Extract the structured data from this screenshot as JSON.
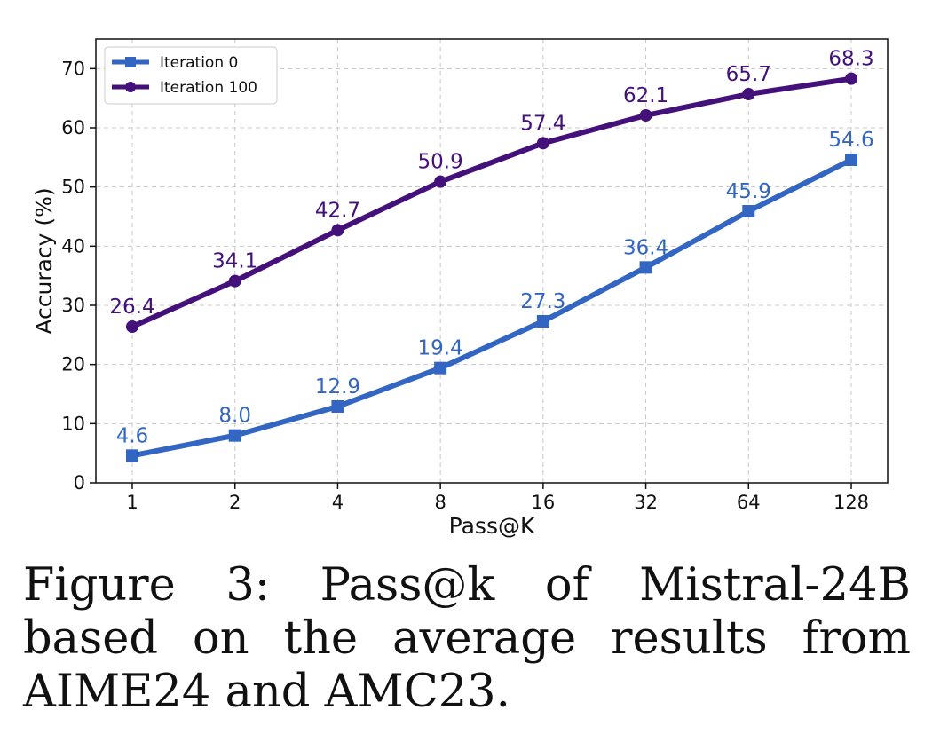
{
  "chart_data": {
    "type": "line",
    "title": "",
    "xlabel": "Pass@K",
    "ylabel": "Accuracy (%)",
    "categories": [
      "1",
      "2",
      "4",
      "8",
      "16",
      "32",
      "64",
      "128"
    ],
    "ylim": [
      0,
      75
    ],
    "yticks": [
      0,
      10,
      20,
      30,
      40,
      50,
      60,
      70
    ],
    "grid": true,
    "legend_position": "top-left",
    "series": [
      {
        "name": "Iteration 0",
        "color": "#3366c2",
        "marker": "square",
        "values": [
          4.6,
          8.0,
          12.9,
          19.4,
          27.3,
          36.4,
          45.9,
          54.6
        ],
        "labels": [
          "4.6",
          "8.0",
          "12.9",
          "19.4",
          "27.3",
          "36.4",
          "45.9",
          "54.6"
        ]
      },
      {
        "name": "Iteration 100",
        "color": "#44107a",
        "marker": "circle",
        "values": [
          26.4,
          34.1,
          42.7,
          50.9,
          57.4,
          62.1,
          65.7,
          68.3
        ],
        "labels": [
          "26.4",
          "34.1",
          "42.7",
          "50.9",
          "57.4",
          "62.1",
          "65.7",
          "68.3"
        ]
      }
    ]
  },
  "caption": "Figure 3:  Pass@k of Mistral-24B based on the average results from AIME24 and AMC23."
}
